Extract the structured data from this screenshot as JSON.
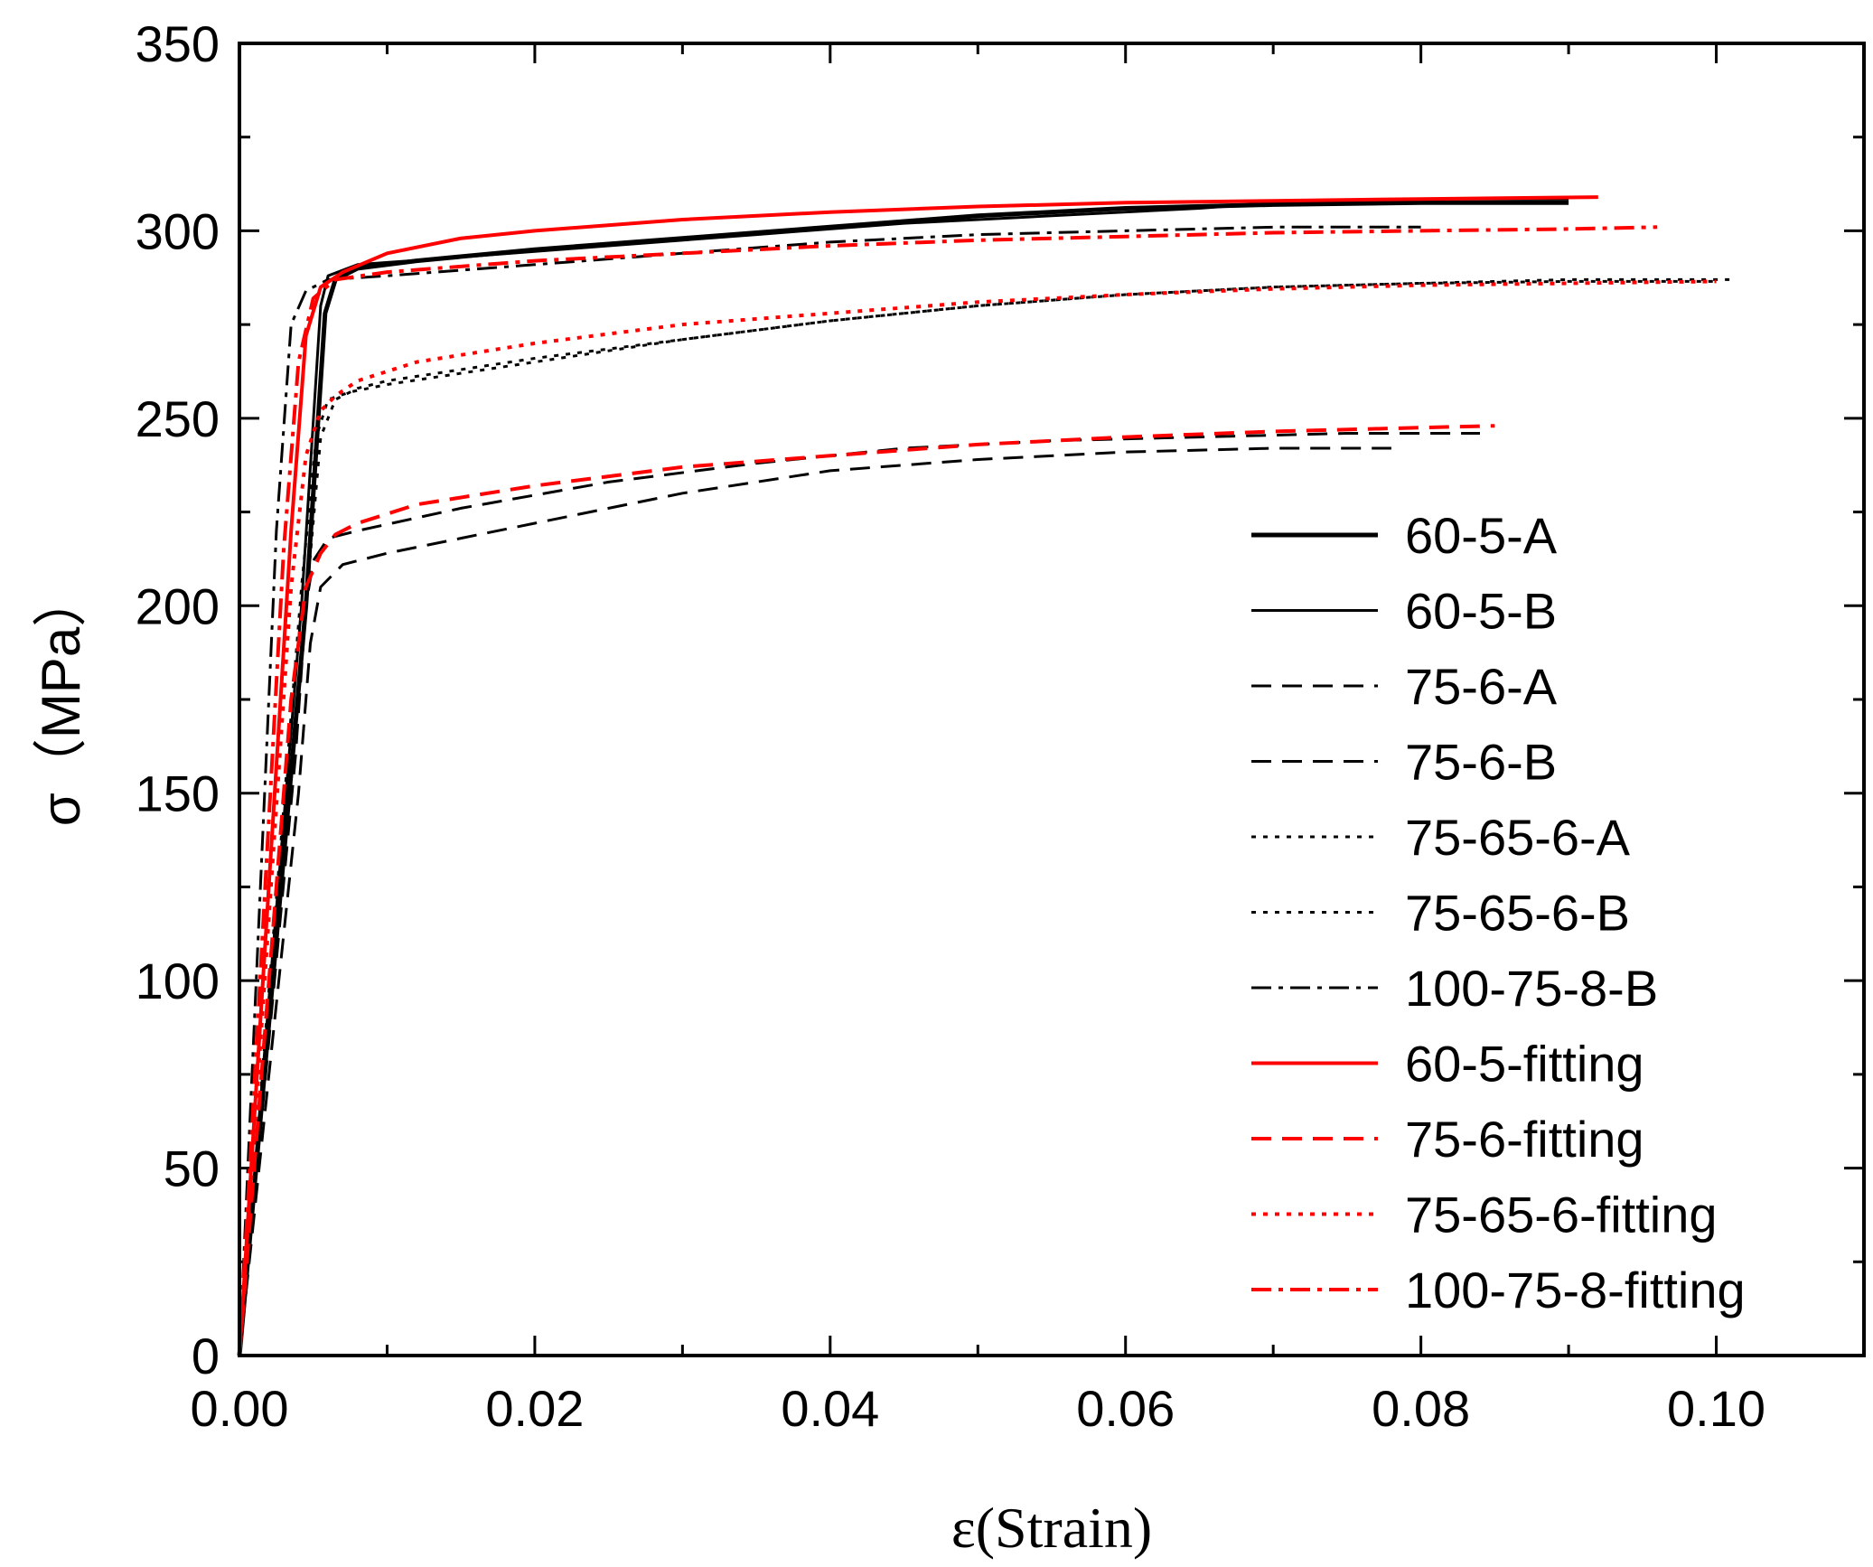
{
  "chart_data": {
    "type": "line",
    "title": "",
    "xlabel": "ε(Strain)",
    "ylabel": "σ（MPa）",
    "xlim": [
      0,
      0.11
    ],
    "ylim": [
      0,
      350
    ],
    "xticks": [
      0.0,
      0.02,
      0.04,
      0.06,
      0.08,
      0.1
    ],
    "xtick_labels": [
      "0.00",
      "0.02",
      "0.04",
      "0.06",
      "0.08",
      "0.10"
    ],
    "yticks": [
      0,
      50,
      100,
      150,
      200,
      250,
      300,
      350
    ],
    "ytick_labels": [
      "0",
      "50",
      "100",
      "150",
      "200",
      "250",
      "300",
      "350"
    ],
    "grid": false,
    "legend_position": "right",
    "series": [
      {
        "name": "60-5-A",
        "color": "#000000",
        "dash": "solid",
        "width": 5,
        "x": [
          0,
          0.0045,
          0.0058,
          0.0065,
          0.008,
          0.012,
          0.02,
          0.03,
          0.04,
          0.05,
          0.06,
          0.07,
          0.08,
          0.09
        ],
        "y": [
          0,
          200,
          278,
          287,
          290,
          292,
          295,
          298,
          301,
          304,
          306,
          307,
          307.5,
          307.5
        ]
      },
      {
        "name": "60-5-B",
        "color": "#000000",
        "dash": "solid",
        "width": 3,
        "x": [
          0,
          0.0042,
          0.0055,
          0.006,
          0.008,
          0.015,
          0.025,
          0.035,
          0.045,
          0.055,
          0.065,
          0.072,
          0.08,
          0.09
        ],
        "y": [
          0,
          200,
          280,
          288,
          291,
          293,
          296,
          299,
          302,
          304,
          306,
          308,
          308.5,
          308.5
        ]
      },
      {
        "name": "75-6-A",
        "color": "#000000",
        "dash": "dashed",
        "width": 3,
        "x": [
          0,
          0.004,
          0.0048,
          0.0055,
          0.007,
          0.01,
          0.02,
          0.03,
          0.04,
          0.05,
          0.06,
          0.07,
          0.078
        ],
        "y": [
          0,
          150,
          190,
          205,
          211,
          214,
          222,
          230,
          236,
          239,
          241,
          242,
          242
        ]
      },
      {
        "name": "75-6-B",
        "color": "#000000",
        "dash": "dashed",
        "width": 3,
        "x": [
          0,
          0.0038,
          0.0045,
          0.005,
          0.006,
          0.008,
          0.015,
          0.025,
          0.035,
          0.045,
          0.055,
          0.065,
          0.075,
          0.084
        ],
        "y": [
          0,
          160,
          200,
          212,
          218,
          220,
          226,
          233,
          238,
          242,
          244,
          245,
          246,
          246
        ]
      },
      {
        "name": "75-65-6-A",
        "color": "#000000",
        "dash": "dotted",
        "width": 3,
        "x": [
          0,
          0.0045,
          0.0055,
          0.0065,
          0.008,
          0.01,
          0.02,
          0.03,
          0.04,
          0.05,
          0.06,
          0.07,
          0.08,
          0.09,
          0.101
        ],
        "y": [
          0,
          200,
          245,
          255,
          258,
          260,
          266,
          271,
          276,
          280,
          283,
          285,
          286,
          287,
          287
        ]
      },
      {
        "name": "75-65-6-B",
        "color": "#000000",
        "dash": "dotted",
        "width": 3,
        "x": [
          0,
          0.0042,
          0.0052,
          0.006,
          0.0075,
          0.01,
          0.02,
          0.03,
          0.04,
          0.05,
          0.06,
          0.07,
          0.08,
          0.09,
          0.1
        ],
        "y": [
          0,
          205,
          245,
          255,
          257,
          259,
          265,
          271,
          276,
          280,
          283,
          285,
          286,
          286.5,
          286.5
        ]
      },
      {
        "name": "100-75-8-B",
        "color": "#000000",
        "dash": "dashdot",
        "width": 3,
        "x": [
          0,
          0.0025,
          0.0035,
          0.0045,
          0.006,
          0.01,
          0.02,
          0.03,
          0.04,
          0.05,
          0.06,
          0.07,
          0.08
        ],
        "y": [
          0,
          220,
          275,
          284,
          287,
          288,
          291,
          294,
          297,
          299,
          300,
          301,
          301
        ]
      },
      {
        "name": "60-5-fitting",
        "color": "#ff0000",
        "dash": "solid",
        "width": 4,
        "x": [
          0,
          0.0035,
          0.0045,
          0.0055,
          0.007,
          0.01,
          0.015,
          0.02,
          0.03,
          0.04,
          0.05,
          0.06,
          0.07,
          0.08,
          0.092
        ],
        "y": [
          0,
          220,
          272,
          285,
          289,
          294,
          298,
          300,
          303,
          305,
          306.5,
          307.5,
          308,
          308.5,
          309
        ]
      },
      {
        "name": "75-6-fitting",
        "color": "#ff0000",
        "dash": "dashed",
        "width": 4,
        "x": [
          0,
          0.0035,
          0.0045,
          0.0055,
          0.0065,
          0.008,
          0.012,
          0.02,
          0.03,
          0.04,
          0.05,
          0.06,
          0.07,
          0.08,
          0.085
        ],
        "y": [
          0,
          175,
          205,
          214,
          219,
          222,
          227,
          232,
          237,
          240,
          243,
          245,
          246.5,
          247.5,
          248
        ]
      },
      {
        "name": "75-65-6-fitting",
        "color": "#ff0000",
        "dash": "dotted",
        "width": 4,
        "x": [
          0,
          0.0035,
          0.0045,
          0.0055,
          0.0065,
          0.008,
          0.012,
          0.02,
          0.03,
          0.04,
          0.05,
          0.06,
          0.07,
          0.08,
          0.09,
          0.1
        ],
        "y": [
          0,
          205,
          240,
          252,
          256,
          260,
          265,
          270,
          275,
          278,
          281,
          283,
          284.5,
          285.5,
          286,
          286.5
        ]
      },
      {
        "name": "100-75-8-fitting",
        "color": "#ff0000",
        "dash": "dashdot",
        "width": 4,
        "x": [
          0,
          0.003,
          0.004,
          0.005,
          0.0065,
          0.01,
          0.02,
          0.03,
          0.04,
          0.05,
          0.06,
          0.07,
          0.08,
          0.09,
          0.096
        ],
        "y": [
          0,
          215,
          265,
          282,
          287,
          289,
          292,
          294,
          296,
          297.5,
          298.5,
          299.5,
          300,
          300.5,
          301
        ]
      }
    ]
  }
}
